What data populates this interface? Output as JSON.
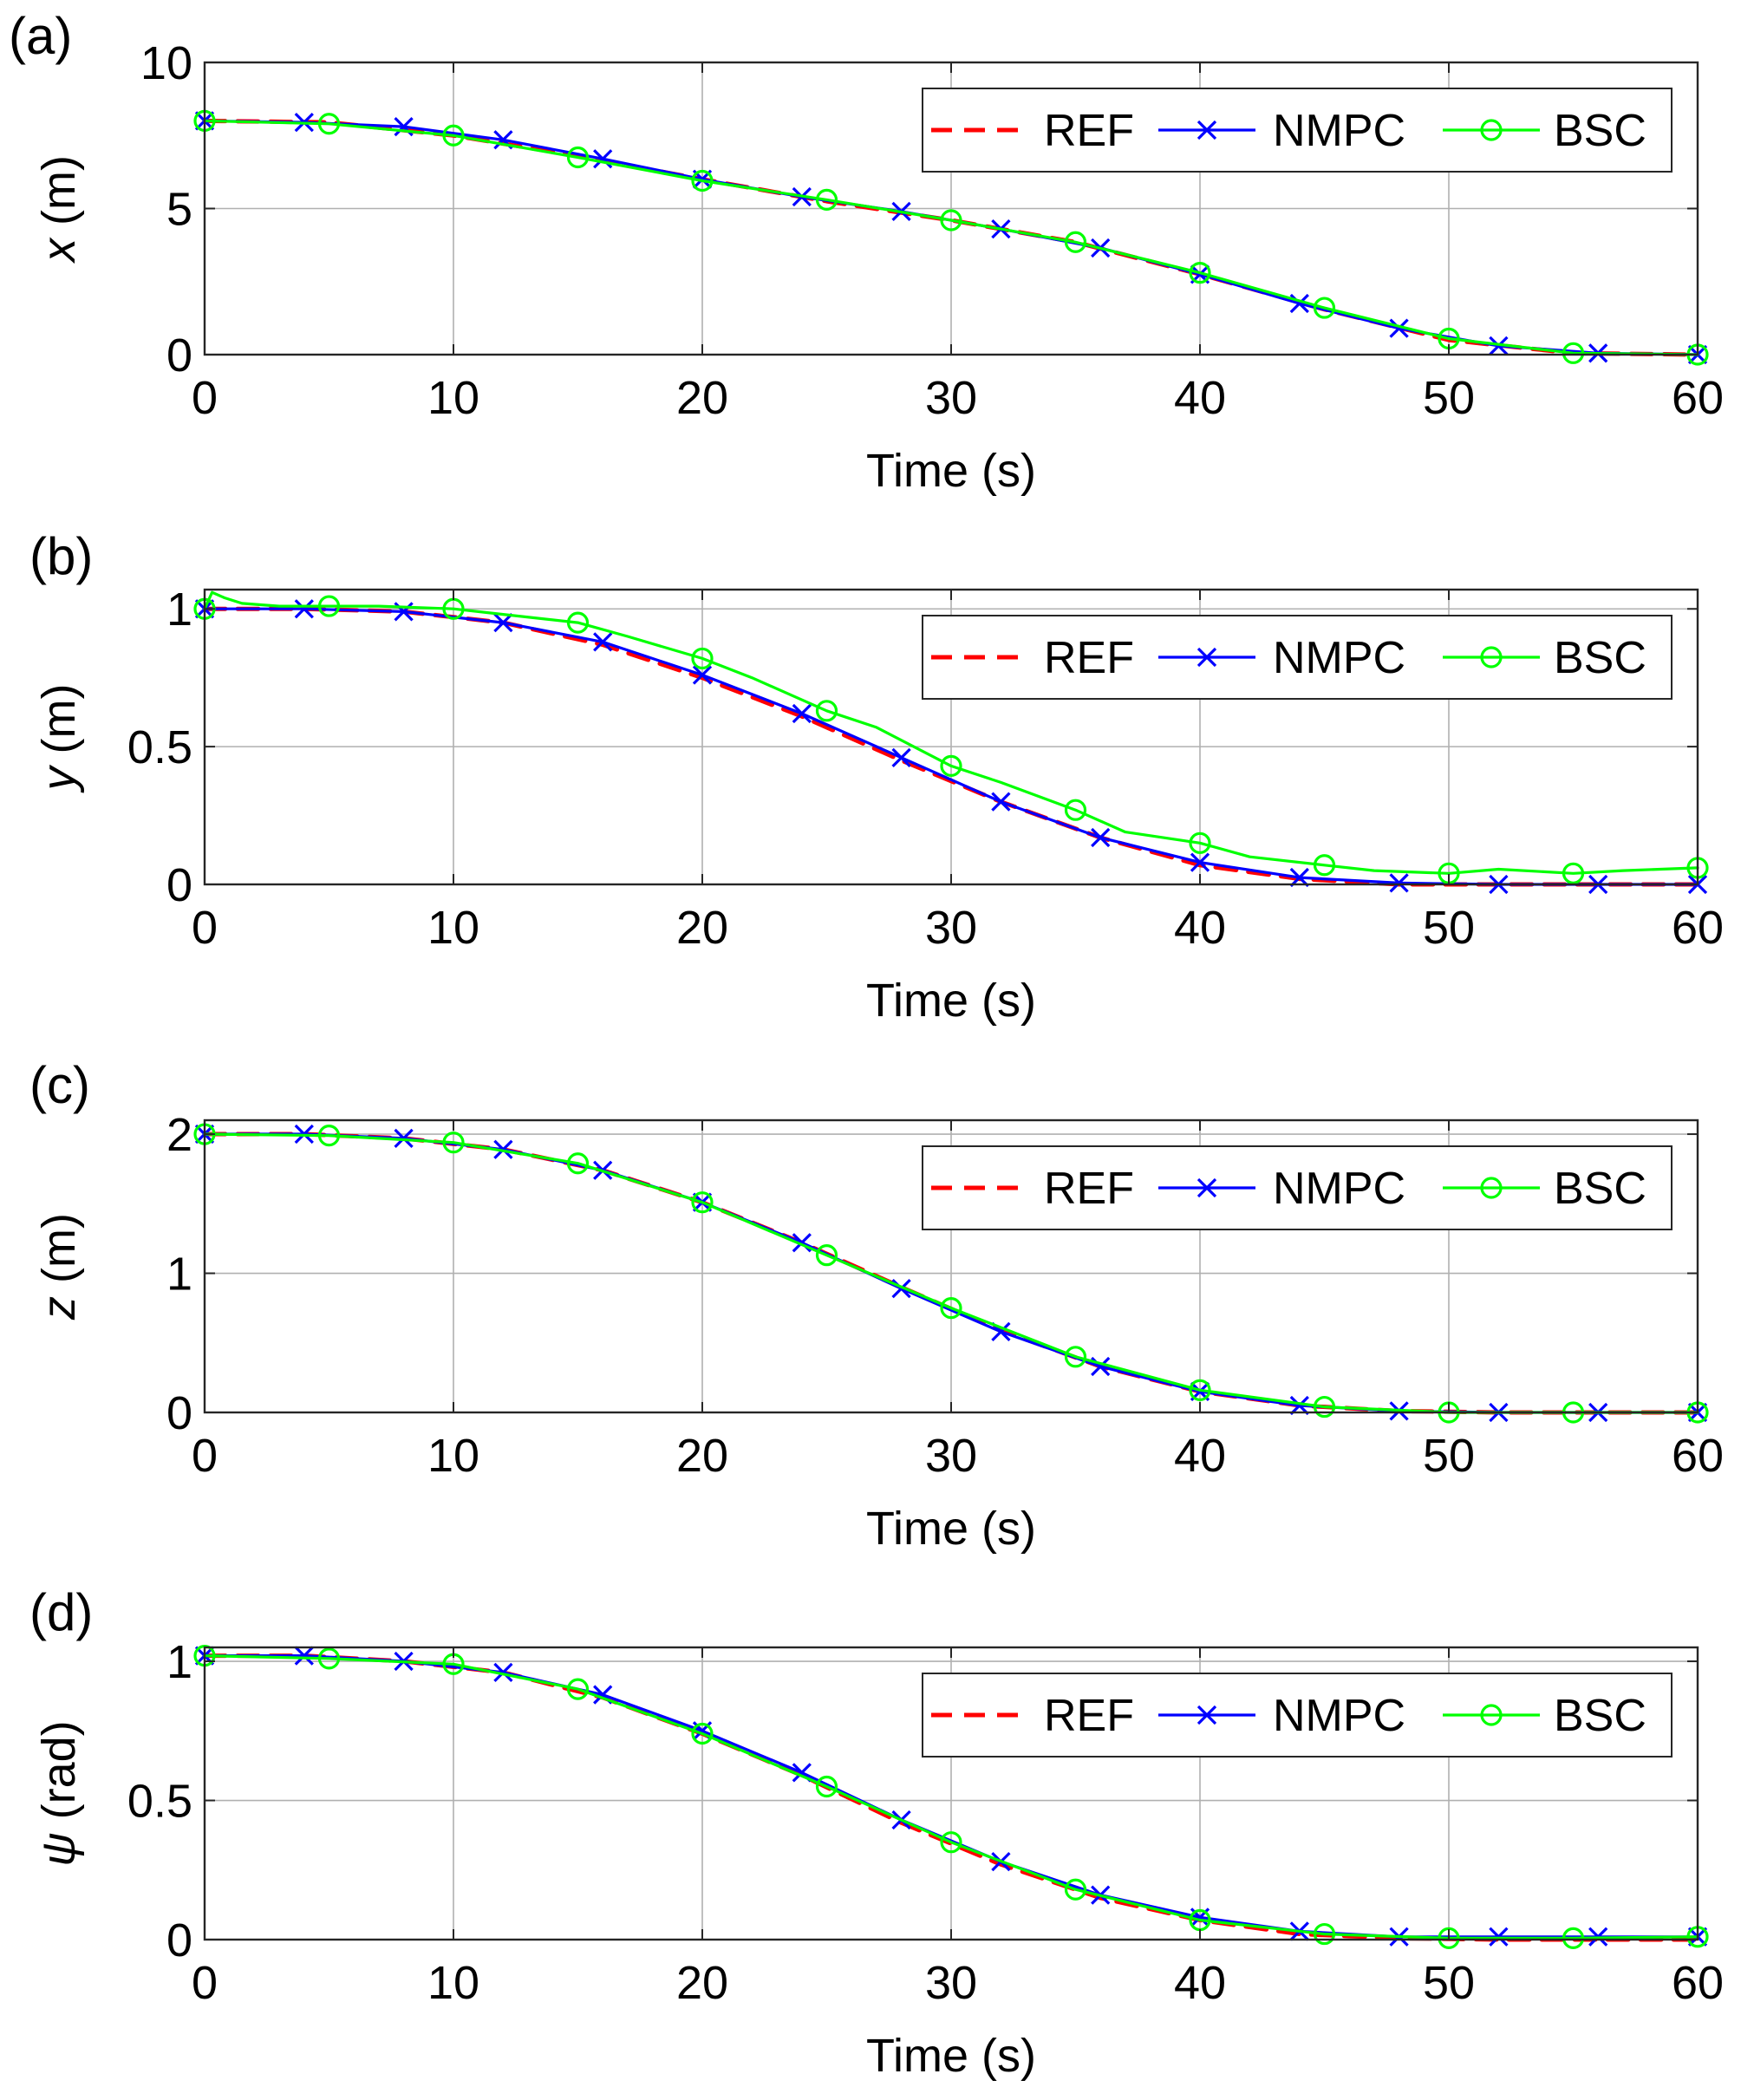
{
  "colors": {
    "REF": "#ff0000",
    "NMPC": "#0000ff",
    "BSC": "#00ff00",
    "grid": "#b0b0b0",
    "axes": "#262626"
  },
  "chart_data": [
    {
      "type": "line",
      "panel_label": "(a)",
      "xlabel": "Time (s)",
      "ylabel_var": "x",
      "ylabel_unit": " (m)",
      "xlim": [
        0,
        60
      ],
      "ylim": [
        0,
        10
      ],
      "xticks": [
        0,
        10,
        20,
        30,
        40,
        50,
        60
      ],
      "yticks": [
        0,
        5,
        10
      ],
      "grid": true,
      "legend": {
        "entries": [
          "REF",
          "NMPC",
          "BSC"
        ],
        "location": "top-right",
        "orientation": "horizontal"
      },
      "series": [
        {
          "name": "REF",
          "style": "dashed",
          "marker": "none",
          "x": [
            0,
            5,
            10,
            15,
            20,
            25,
            30,
            35,
            40,
            45,
            50,
            55,
            60
          ],
          "y": [
            8.0,
            7.95,
            7.5,
            6.8,
            6.0,
            5.25,
            4.6,
            3.85,
            2.75,
            1.55,
            0.5,
            0.05,
            0.0
          ]
        },
        {
          "name": "NMPC",
          "style": "solid",
          "marker": "x",
          "x": [
            0,
            4,
            8,
            12,
            16,
            20,
            24,
            28,
            32,
            36,
            40,
            44,
            48,
            52,
            56,
            60
          ],
          "y": [
            8.0,
            7.95,
            7.8,
            7.35,
            6.7,
            6.0,
            5.4,
            4.9,
            4.3,
            3.65,
            2.75,
            1.75,
            0.9,
            0.3,
            0.05,
            0.0
          ]
        },
        {
          "name": "BSC",
          "style": "solid",
          "marker": "circle",
          "x": [
            0,
            5,
            10,
            15,
            20,
            25,
            30,
            35,
            40,
            45,
            50,
            55,
            60
          ],
          "y": [
            8.0,
            7.9,
            7.5,
            6.75,
            5.95,
            5.3,
            4.6,
            3.85,
            2.8,
            1.6,
            0.55,
            0.05,
            0.0
          ]
        }
      ]
    },
    {
      "type": "line",
      "panel_label": "(b)",
      "xlabel": "Time (s)",
      "ylabel_var": "y",
      "ylabel_unit": " (m)",
      "xlim": [
        0,
        60
      ],
      "ylim": [
        0,
        1.07
      ],
      "xticks": [
        0,
        10,
        20,
        30,
        40,
        50,
        60
      ],
      "yticks": [
        0,
        0.5,
        1
      ],
      "grid": true,
      "legend": {
        "entries": [
          "REF",
          "NMPC",
          "BSC"
        ],
        "location": "top-right",
        "orientation": "horizontal"
      },
      "series": [
        {
          "name": "REF",
          "style": "dashed",
          "marker": "none",
          "x": [
            0,
            4,
            8,
            12,
            16,
            20,
            24,
            28,
            32,
            36,
            40,
            44,
            48,
            52,
            56,
            60
          ],
          "y": [
            1.0,
            1.0,
            0.99,
            0.95,
            0.87,
            0.75,
            0.61,
            0.45,
            0.3,
            0.17,
            0.07,
            0.02,
            0.0,
            0.0,
            0.0,
            0.0
          ]
        },
        {
          "name": "NMPC",
          "style": "solid",
          "marker": "x",
          "x": [
            0,
            4,
            8,
            12,
            16,
            20,
            24,
            28,
            32,
            36,
            40,
            44,
            48,
            52,
            56,
            60
          ],
          "y": [
            1.0,
            1.0,
            0.99,
            0.95,
            0.88,
            0.76,
            0.62,
            0.46,
            0.3,
            0.17,
            0.08,
            0.025,
            0.005,
            0.0,
            0.0,
            0.0
          ]
        },
        {
          "name": "BSC",
          "style": "solid",
          "marker": "circle",
          "x": [
            0,
            0.3,
            0.8,
            1.5,
            3,
            5,
            7,
            10,
            12,
            15,
            17,
            20,
            22,
            25,
            27,
            30,
            32,
            35,
            37,
            40,
            42,
            45,
            47,
            50,
            52,
            55,
            57,
            60
          ],
          "y": [
            1.0,
            1.06,
            1.04,
            1.02,
            1.01,
            1.01,
            1.01,
            1.0,
            0.98,
            0.95,
            0.9,
            0.82,
            0.75,
            0.63,
            0.57,
            0.43,
            0.37,
            0.27,
            0.19,
            0.15,
            0.1,
            0.07,
            0.05,
            0.04,
            0.055,
            0.04,
            0.05,
            0.06
          ],
          "marker_x": [
            0,
            5,
            10,
            15,
            20,
            25,
            30,
            35,
            40,
            45,
            50,
            55,
            60
          ],
          "marker_y": [
            1.0,
            1.01,
            1.0,
            0.95,
            0.82,
            0.63,
            0.43,
            0.27,
            0.15,
            0.07,
            0.04,
            0.04,
            0.06
          ]
        }
      ]
    },
    {
      "type": "line",
      "panel_label": "(c)",
      "xlabel": "Time (s)",
      "ylabel_var": "z",
      "ylabel_unit": " (m)",
      "xlim": [
        0,
        60
      ],
      "ylim": [
        0,
        2.1
      ],
      "xticks": [
        0,
        10,
        20,
        30,
        40,
        50,
        60
      ],
      "yticks": [
        0,
        1,
        2
      ],
      "grid": true,
      "legend": {
        "entries": [
          "REF",
          "NMPC",
          "BSC"
        ],
        "location": "top-right",
        "orientation": "horizontal"
      },
      "series": [
        {
          "name": "REF",
          "style": "dashed",
          "marker": "none",
          "x": [
            0,
            4,
            8,
            12,
            16,
            20,
            24,
            28,
            32,
            36,
            40,
            44,
            48,
            52,
            56,
            60
          ],
          "y": [
            2.0,
            2.0,
            1.97,
            1.89,
            1.74,
            1.51,
            1.22,
            0.9,
            0.59,
            0.33,
            0.15,
            0.05,
            0.01,
            0.0,
            0.0,
            0.0
          ]
        },
        {
          "name": "NMPC",
          "style": "solid",
          "marker": "x",
          "x": [
            0,
            4,
            8,
            12,
            16,
            20,
            24,
            28,
            32,
            36,
            40,
            44,
            48,
            52,
            56,
            60
          ],
          "y": [
            2.0,
            2.0,
            1.97,
            1.89,
            1.74,
            1.51,
            1.22,
            0.89,
            0.58,
            0.33,
            0.15,
            0.05,
            0.01,
            0.0,
            0.0,
            0.0
          ]
        },
        {
          "name": "BSC",
          "style": "solid",
          "marker": "circle",
          "x": [
            0,
            5,
            10,
            15,
            20,
            25,
            30,
            35,
            40,
            45,
            50,
            55,
            60
          ],
          "y": [
            2.0,
            1.99,
            1.94,
            1.79,
            1.51,
            1.13,
            0.75,
            0.4,
            0.16,
            0.04,
            0.0,
            0.0,
            0.0
          ]
        }
      ]
    },
    {
      "type": "line",
      "panel_label": "(d)",
      "xlabel": "Time (s)",
      "ylabel_var": "ψ",
      "ylabel_unit": " (rad)",
      "xlim": [
        0,
        60
      ],
      "ylim": [
        0,
        1.05
      ],
      "xticks": [
        0,
        10,
        20,
        30,
        40,
        50,
        60
      ],
      "yticks": [
        0,
        0.5,
        1
      ],
      "grid": true,
      "legend": {
        "entries": [
          "REF",
          "NMPC",
          "BSC"
        ],
        "location": "top-right",
        "orientation": "horizontal"
      },
      "series": [
        {
          "name": "REF",
          "style": "dashed",
          "marker": "none",
          "x": [
            0,
            4,
            8,
            12,
            16,
            20,
            24,
            28,
            32,
            36,
            40,
            44,
            48,
            52,
            56,
            60
          ],
          "y": [
            1.02,
            1.02,
            1.0,
            0.96,
            0.87,
            0.74,
            0.59,
            0.42,
            0.27,
            0.15,
            0.07,
            0.02,
            0.005,
            0.0,
            0.0,
            0.0
          ]
        },
        {
          "name": "NMPC",
          "style": "solid",
          "marker": "x",
          "x": [
            0,
            4,
            8,
            12,
            16,
            20,
            24,
            28,
            32,
            36,
            40,
            44,
            48,
            52,
            56,
            60
          ],
          "y": [
            1.02,
            1.02,
            1.0,
            0.96,
            0.88,
            0.75,
            0.6,
            0.43,
            0.28,
            0.16,
            0.08,
            0.03,
            0.01,
            0.01,
            0.01,
            0.01
          ]
        },
        {
          "name": "BSC",
          "style": "solid",
          "marker": "circle",
          "x": [
            0,
            5,
            10,
            15,
            20,
            25,
            30,
            35,
            40,
            45,
            50,
            55,
            60
          ],
          "y": [
            1.02,
            1.01,
            0.99,
            0.9,
            0.74,
            0.55,
            0.35,
            0.18,
            0.07,
            0.02,
            0.005,
            0.005,
            0.01
          ]
        }
      ]
    }
  ]
}
